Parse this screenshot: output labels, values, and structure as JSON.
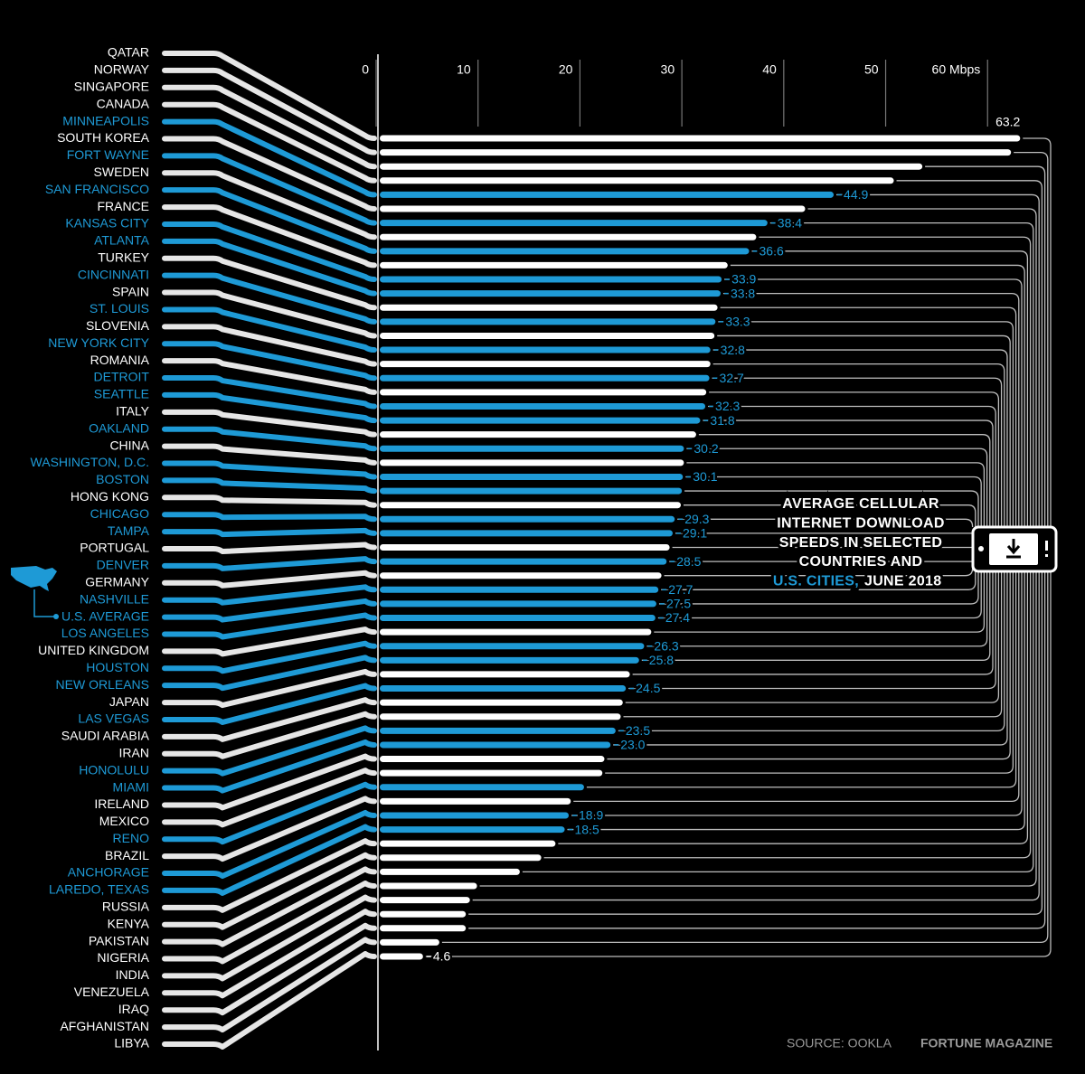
{
  "chart_data": {
    "type": "bar",
    "title_lines": [
      "AVERAGE CELLULAR",
      "INTERNET DOWNLOAD",
      "SPEEDS IN SELECTED",
      "COUNTRIES AND"
    ],
    "title_highlight": "U.S. CITIES,",
    "title_tail": "JUNE 2018",
    "source": "SOURCE: OOKLA",
    "credit": "FORTUNE MAGAZINE",
    "categories": [
      "QATAR",
      "NORWAY",
      "SINGAPORE",
      "CANADA",
      "MINNEAPOLIS",
      "SOUTH KOREA",
      "FORT WAYNE",
      "SWEDEN",
      "SAN FRANCISCO",
      "FRANCE",
      "KANSAS CITY",
      "ATLANTA",
      "TURKEY",
      "CINCINNATI",
      "SPAIN",
      "ST. LOUIS",
      "SLOVENIA",
      "NEW YORK CITY",
      "ROMANIA",
      "DETROIT",
      "SEATTLE",
      "ITALY",
      "OAKLAND",
      "CHINA",
      "WASHINGTON, D.C.",
      "BOSTON",
      "HONG KONG",
      "CHICAGO",
      "TAMPA",
      "PORTUGAL",
      "DENVER",
      "GERMANY",
      "NASHVILLE",
      "U.S. AVERAGE",
      "LOS ANGELES",
      "UNITED KINGDOM",
      "HOUSTON",
      "NEW ORLEANS",
      "JAPAN",
      "LAS VEGAS",
      "SAUDI ARABIA",
      "IRAN",
      "HONOLULU",
      "MIAMI",
      "IRELAND",
      "MEXICO",
      "RENO",
      "BRAZIL",
      "ANCHORAGE",
      "LAREDO, TEXAS",
      "RUSSIA",
      "KENYA",
      "PAKISTAN",
      "NIGERIA",
      "INDIA",
      "VENEZUELA",
      "IRAQ",
      "AFGHANISTAN",
      "LIBYA"
    ],
    "values": [
      63.2,
      62.3,
      53.6,
      50.8,
      44.9,
      42.1,
      38.4,
      37.3,
      36.6,
      34.5,
      33.9,
      33.8,
      33.5,
      33.3,
      33.2,
      32.8,
      32.8,
      32.7,
      32.4,
      32.3,
      31.8,
      31.4,
      30.2,
      30.2,
      30.1,
      30.0,
      29.9,
      29.3,
      29.1,
      28.8,
      28.5,
      28.0,
      27.7,
      27.5,
      27.4,
      27.0,
      26.3,
      25.8,
      24.9,
      24.5,
      24.2,
      24.0,
      23.5,
      23.0,
      22.4,
      22.2,
      20.4,
      19.1,
      18.9,
      18.5,
      17.6,
      16.2,
      14.1,
      9.9,
      9.2,
      8.8,
      8.8,
      6.2,
      4.6
    ],
    "value_labels": [
      "63.2",
      null,
      null,
      null,
      "44.9",
      null,
      "38.4",
      null,
      "36.6",
      null,
      "33.9",
      "33.8",
      null,
      "33.3",
      null,
      "32.8",
      null,
      "32.7",
      null,
      "32.3",
      "31.8",
      null,
      "30.2",
      null,
      "30.1",
      null,
      null,
      "29.3",
      "29.1",
      null,
      "28.5",
      null,
      "27.7",
      "27.5",
      "27.4",
      null,
      "26.3",
      "25.8",
      null,
      "24.5",
      null,
      null,
      "23.5",
      "23.0",
      null,
      null,
      null,
      null,
      "18.9",
      "18.5",
      null,
      null,
      null,
      null,
      null,
      null,
      null,
      null,
      "4.6"
    ],
    "colors": [
      "#ffffff",
      "#ffffff",
      "#ffffff",
      "#ffffff",
      "#1e9ad6",
      "#ffffff",
      "#1e9ad6",
      "#ffffff",
      "#1e9ad6",
      "#ffffff",
      "#1e9ad6",
      "#1e9ad6",
      "#ffffff",
      "#1e9ad6",
      "#ffffff",
      "#1e9ad6",
      "#ffffff",
      "#1e9ad6",
      "#ffffff",
      "#1e9ad6",
      "#1e9ad6",
      "#ffffff",
      "#1e9ad6",
      "#ffffff",
      "#1e9ad6",
      "#1e9ad6",
      "#ffffff",
      "#1e9ad6",
      "#1e9ad6",
      "#ffffff",
      "#1e9ad6",
      "#ffffff",
      "#1e9ad6",
      "#1e9ad6",
      "#1e9ad6",
      "#ffffff",
      "#1e9ad6",
      "#1e9ad6",
      "#ffffff",
      "#1e9ad6",
      "#ffffff",
      "#ffffff",
      "#1e9ad6",
      "#1e9ad6",
      "#ffffff",
      "#ffffff",
      "#1e9ad6",
      "#ffffff",
      "#1e9ad6",
      "#1e9ad6",
      "#ffffff",
      "#ffffff",
      "#ffffff",
      "#ffffff",
      "#ffffff",
      "#ffffff",
      "#ffffff",
      "#ffffff",
      "#ffffff"
    ],
    "xlim": [
      0,
      65
    ],
    "xticks": [
      0,
      10,
      20,
      30,
      40,
      50,
      {
        "value": 60,
        "label": "60 Mbps"
      }
    ]
  }
}
